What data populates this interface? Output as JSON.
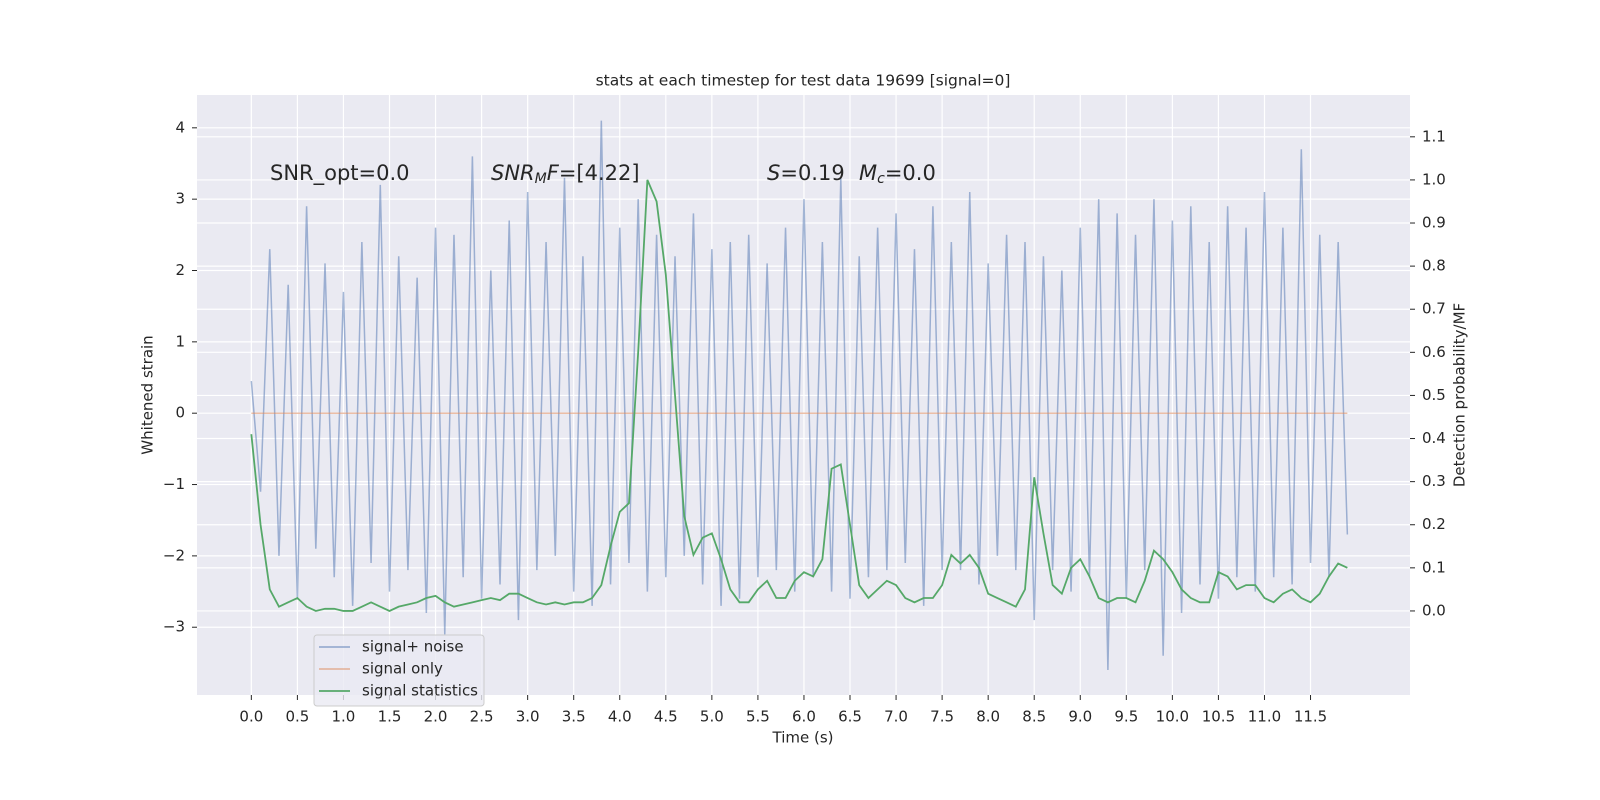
{
  "chart_data": {
    "type": "line",
    "title": "stats at each timestep for test data 19699 [signal=0]",
    "x_label": "Time (s)",
    "y_label": "Whitened strain",
    "y2_label": "Detection probability/MF",
    "annotations": [
      {
        "parts": [
          "SNR_opt=0.0"
        ],
        "styles": [
          "n"
        ]
      },
      {
        "parts": [
          "SNR",
          "M",
          "F",
          "=[4.22]"
        ],
        "styles": [
          "i",
          "si",
          "i",
          "n"
        ]
      },
      {
        "parts": [
          "S",
          "=0.19"
        ],
        "styles": [
          "i",
          "n"
        ]
      },
      {
        "parts": [
          "M",
          "c",
          "=0.0"
        ],
        "styles": [
          "i",
          "si",
          "n"
        ]
      }
    ],
    "x": [
      0,
      0.1,
      0.2,
      0.3,
      0.4,
      0.5,
      0.6,
      0.7,
      0.8,
      0.9,
      1,
      1.1,
      1.2,
      1.3,
      1.4,
      1.5,
      1.6,
      1.7,
      1.8,
      1.9,
      2,
      2.1,
      2.2,
      2.3,
      2.4,
      2.5,
      2.6,
      2.7,
      2.8,
      2.9,
      3,
      3.1,
      3.2,
      3.3,
      3.4,
      3.5,
      3.6,
      3.7,
      3.8,
      3.9,
      4,
      4.1,
      4.2,
      4.3,
      4.4,
      4.5,
      4.6,
      4.7,
      4.8,
      4.9,
      5,
      5.1,
      5.2,
      5.3,
      5.4,
      5.5,
      5.6,
      5.7,
      5.8,
      5.9,
      6,
      6.1,
      6.2,
      6.3,
      6.4,
      6.5,
      6.6,
      6.7,
      6.8,
      6.9,
      7,
      7.1,
      7.2,
      7.3,
      7.4,
      7.5,
      7.6,
      7.7,
      7.8,
      7.9,
      8,
      8.1,
      8.2,
      8.3,
      8.4,
      8.5,
      8.6,
      8.7,
      8.8,
      8.9,
      9,
      9.1,
      9.2,
      9.3,
      9.4,
      9.5,
      9.6,
      9.7,
      9.8,
      9.9,
      10,
      10.1,
      10.2,
      10.3,
      10.4,
      10.5,
      10.6,
      10.7,
      10.8,
      10.9,
      11,
      11.1,
      11.2,
      11.3,
      11.4,
      11.5,
      11.6,
      11.7,
      11.8,
      11.9
    ],
    "series": [
      {
        "name": "signal+ noise",
        "color": "#4c72b0",
        "axis": "y",
        "values": [
          0.45,
          -1.1,
          2.3,
          -2.0,
          1.8,
          -2.6,
          2.9,
          -1.9,
          2.1,
          -2.3,
          1.7,
          -2.7,
          2.4,
          -2.1,
          3.2,
          -2.5,
          2.2,
          -2.2,
          1.9,
          -2.8,
          2.6,
          -3.1,
          2.5,
          -2.3,
          3.6,
          -2.6,
          2.0,
          -2.4,
          2.7,
          -2.9,
          3.1,
          -2.2,
          2.4,
          -2.0,
          3.3,
          -2.5,
          2.2,
          -2.7,
          4.1,
          -2.4,
          2.6,
          -2.1,
          3.0,
          -2.5,
          2.5,
          -2.3,
          2.2,
          -2.0,
          2.8,
          -2.4,
          2.3,
          -2.7,
          2.4,
          -2.6,
          2.5,
          -2.3,
          2.1,
          -2.2,
          2.6,
          -2.5,
          3.0,
          -2.3,
          2.4,
          -2.5,
          3.3,
          -2.6,
          2.2,
          -2.3,
          2.6,
          -2.2,
          2.8,
          -2.1,
          2.3,
          -2.7,
          2.9,
          -2.2,
          2.4,
          -2.2,
          3.1,
          -2.4,
          2.1,
          -2.0,
          2.5,
          -2.2,
          2.4,
          -2.9,
          2.2,
          -2.2,
          2.0,
          -2.5,
          2.6,
          -2.3,
          3.0,
          -3.6,
          2.8,
          -2.6,
          2.5,
          -2.2,
          3.0,
          -3.4,
          2.7,
          -2.8,
          2.9,
          -2.4,
          2.4,
          -2.6,
          2.9,
          -2.3,
          2.6,
          -2.5,
          3.1,
          -2.3,
          2.6,
          -2.4,
          3.7,
          -2.1,
          2.5,
          -2.3,
          2.4,
          -1.7
        ]
      },
      {
        "name": "signal only",
        "color": "#dd8452",
        "axis": "y",
        "values": [
          0,
          0,
          0,
          0,
          0,
          0,
          0,
          0,
          0,
          0,
          0,
          0,
          0,
          0,
          0,
          0,
          0,
          0,
          0,
          0,
          0,
          0,
          0,
          0,
          0,
          0,
          0,
          0,
          0,
          0,
          0,
          0,
          0,
          0,
          0,
          0,
          0,
          0,
          0,
          0,
          0,
          0,
          0,
          0,
          0,
          0,
          0,
          0,
          0,
          0,
          0,
          0,
          0,
          0,
          0,
          0,
          0,
          0,
          0,
          0,
          0,
          0,
          0,
          0,
          0,
          0,
          0,
          0,
          0,
          0,
          0,
          0,
          0,
          0,
          0,
          0,
          0,
          0,
          0,
          0,
          0,
          0,
          0,
          0,
          0,
          0,
          0,
          0,
          0,
          0,
          0,
          0,
          0,
          0,
          0,
          0,
          0,
          0,
          0,
          0,
          0,
          0,
          0,
          0,
          0,
          0,
          0,
          0,
          0,
          0,
          0,
          0,
          0,
          0,
          0,
          0,
          0,
          0,
          0,
          0
        ]
      },
      {
        "name": "signal statistics",
        "color": "#55a868",
        "axis": "y2",
        "values": [
          0.41,
          0.2,
          0.05,
          0.01,
          0.02,
          0.03,
          0.01,
          0,
          0.005,
          0.005,
          0,
          0,
          0.01,
          0.02,
          0.01,
          0,
          0.01,
          0.015,
          0.02,
          0.03,
          0.035,
          0.02,
          0.01,
          0.015,
          0.02,
          0.025,
          0.03,
          0.025,
          0.04,
          0.04,
          0.03,
          0.02,
          0.015,
          0.02,
          0.015,
          0.02,
          0.02,
          0.03,
          0.06,
          0.15,
          0.23,
          0.25,
          0.6,
          1.0,
          0.95,
          0.78,
          0.5,
          0.22,
          0.13,
          0.17,
          0.18,
          0.12,
          0.05,
          0.02,
          0.02,
          0.05,
          0.07,
          0.03,
          0.03,
          0.07,
          0.09,
          0.08,
          0.12,
          0.33,
          0.34,
          0.2,
          0.06,
          0.03,
          0.05,
          0.07,
          0.06,
          0.03,
          0.02,
          0.03,
          0.03,
          0.06,
          0.13,
          0.11,
          0.13,
          0.1,
          0.04,
          0.03,
          0.02,
          0.01,
          0.05,
          0.31,
          0.18,
          0.06,
          0.04,
          0.1,
          0.12,
          0.08,
          0.03,
          0.02,
          0.03,
          0.03,
          0.02,
          0.07,
          0.14,
          0.12,
          0.09,
          0.05,
          0.03,
          0.02,
          0.02,
          0.09,
          0.08,
          0.05,
          0.06,
          0.06,
          0.03,
          0.02,
          0.04,
          0.05,
          0.03,
          0.02,
          0.04,
          0.08,
          0.11,
          0.1
        ]
      }
    ],
    "xlim": [
      -0.59,
      12.58
    ],
    "xticks": [
      {
        "value": 0,
        "label": "0.0"
      },
      0.5,
      {
        "value": 1,
        "label": "1.0"
      },
      1.5,
      {
        "value": 2,
        "label": "2.0"
      },
      2.5,
      {
        "value": 3,
        "label": "3.0"
      },
      3.5,
      {
        "value": 4,
        "label": "4.0"
      },
      4.5,
      {
        "value": 5,
        "label": "5.0"
      },
      5.5,
      {
        "value": 6,
        "label": "6.0"
      },
      6.5,
      {
        "value": 7,
        "label": "7.0"
      },
      7.5,
      {
        "value": 8,
        "label": "8.0"
      },
      8.5,
      {
        "value": 9,
        "label": "9.0"
      },
      9.5,
      {
        "value": 10,
        "label": "10.0"
      },
      10.5,
      {
        "value": 11,
        "label": "11.0"
      },
      11.5
    ],
    "ylim": [
      -3.95,
      4.46
    ],
    "yticks": [
      {
        "value": -3,
        "label": "−3"
      },
      {
        "value": -2,
        "label": "−2"
      },
      {
        "value": -1,
        "label": "−1"
      },
      0,
      1,
      2,
      3,
      4
    ],
    "y2lim": [
      -0.195,
      1.197
    ],
    "y2ticks": [
      {
        "value": 0,
        "label": "0.0"
      },
      0.1,
      0.2,
      0.3,
      0.4,
      0.5,
      0.6,
      0.7,
      0.8,
      0.9,
      {
        "value": 1,
        "label": "1.0"
      },
      1.1
    ],
    "grid": true,
    "legend": "lower left"
  }
}
